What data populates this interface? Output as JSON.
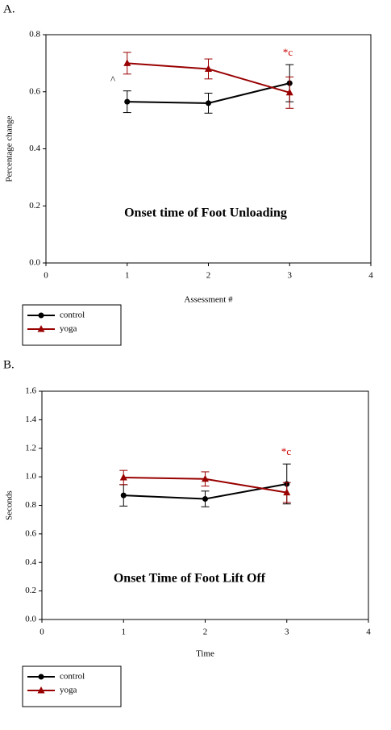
{
  "chart_data": [
    {
      "type": "line",
      "panel_label": "A.",
      "title": "Onset time of Foot Unloading",
      "x_label": "Assessment #",
      "y_label": "Percentage change",
      "x": [
        1,
        2,
        3
      ],
      "xlim": [
        0,
        4
      ],
      "xticks": [
        0,
        1,
        2,
        3,
        4
      ],
      "ylim": [
        0,
        0.8
      ],
      "yticks": [
        {
          "value": 0,
          "label": "0.0"
        },
        0.2,
        0.4,
        0.6,
        0.8
      ],
      "series": [
        {
          "name": "control",
          "color": "#000000",
          "marker": "circle",
          "values": [
            0.565,
            0.56,
            0.63
          ],
          "errors": [
            0.038,
            0.035,
            0.065
          ]
        },
        {
          "name": "yoga",
          "color": "#990000",
          "marker": "triangle",
          "values": [
            0.7,
            0.68,
            0.597
          ],
          "errors": [
            0.038,
            0.035,
            0.055
          ]
        }
      ],
      "annotations": [
        {
          "text": "^",
          "color": "#000000"
        },
        {
          "text": "*c",
          "color": "#cc0000"
        }
      ],
      "legend": "below-left"
    },
    {
      "type": "line",
      "panel_label": "B.",
      "title": "Onset Time of Foot Lift Off",
      "x_label": "Time",
      "y_label": "Seconds",
      "x": [
        1,
        2,
        3
      ],
      "xlim": [
        0,
        4
      ],
      "xticks": [
        0,
        1,
        2,
        3,
        4
      ],
      "ylim": [
        0,
        1.6
      ],
      "yticks": [
        {
          "value": 0,
          "label": "0.0"
        },
        0.2,
        0.4,
        0.6,
        0.8,
        {
          "value": 1,
          "label": "1.0"
        },
        1.2,
        1.4,
        1.6
      ],
      "series": [
        {
          "name": "control",
          "color": "#000000",
          "marker": "circle",
          "values": [
            0.87,
            0.845,
            0.95
          ],
          "errors": [
            0.075,
            0.055,
            0.14
          ]
        },
        {
          "name": "yoga",
          "color": "#990000",
          "marker": "triangle",
          "values": [
            0.995,
            0.985,
            0.89
          ],
          "errors": [
            0.05,
            0.05,
            0.07
          ]
        }
      ],
      "annotations": [
        {
          "text": "*c",
          "color": "#cc0000"
        }
      ],
      "legend": "below-left"
    }
  ]
}
